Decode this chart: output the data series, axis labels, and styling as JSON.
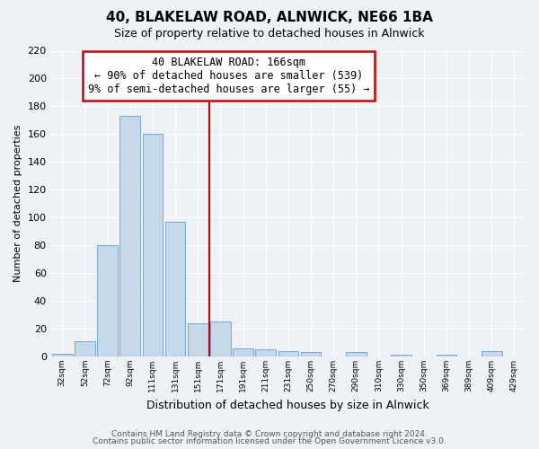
{
  "title": "40, BLAKELAW ROAD, ALNWICK, NE66 1BA",
  "subtitle": "Size of property relative to detached houses in Alnwick",
  "xlabel": "Distribution of detached houses by size in Alnwick",
  "ylabel": "Number of detached properties",
  "footer_line1": "Contains HM Land Registry data © Crown copyright and database right 2024.",
  "footer_line2": "Contains public sector information licensed under the Open Government Licence v3.0.",
  "bar_labels": [
    "32sqm",
    "52sqm",
    "72sqm",
    "92sqm",
    "111sqm",
    "131sqm",
    "151sqm",
    "171sqm",
    "191sqm",
    "211sqm",
    "231sqm",
    "250sqm",
    "270sqm",
    "290sqm",
    "310sqm",
    "330sqm",
    "350sqm",
    "369sqm",
    "389sqm",
    "409sqm",
    "429sqm"
  ],
  "bar_values": [
    2,
    11,
    80,
    173,
    160,
    97,
    24,
    25,
    6,
    5,
    4,
    3,
    0,
    3,
    0,
    1,
    0,
    1,
    0,
    4,
    0
  ],
  "bar_color": "#c6d9ea",
  "bar_edge_color": "#7bafd4",
  "vline_color": "#cc0000",
  "annotation_title": "40 BLAKELAW ROAD: 166sqm",
  "annotation_line1": "← 90% of detached houses are smaller (539)",
  "annotation_line2": "9% of semi-detached houses are larger (55) →",
  "annotation_box_color": "#ffffff",
  "annotation_box_edge_color": "#cc0000",
  "ylim": [
    0,
    220
  ],
  "yticks": [
    0,
    20,
    40,
    60,
    80,
    100,
    120,
    140,
    160,
    180,
    200,
    220
  ],
  "bg_color": "#eef2f7",
  "grid_color": "#ffffff",
  "plot_bg_color": "#eef2f7"
}
